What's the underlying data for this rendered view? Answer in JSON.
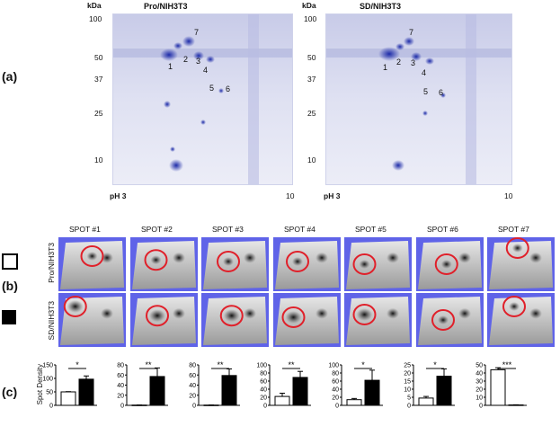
{
  "panel_a": {
    "label": "(a)",
    "unit": "kDa",
    "gels": [
      {
        "title": "Pro/NIH3T3",
        "ph_label": "pH 3",
        "ph_end": "10"
      },
      {
        "title": "SD/NIH3T3",
        "ph_label": "pH 3",
        "ph_end": "10"
      }
    ],
    "mw_ticks": [
      "100",
      "50",
      "37",
      "25",
      "10"
    ],
    "spots": [
      "1",
      "2",
      "3",
      "4",
      "5",
      "6",
      "7"
    ]
  },
  "panel_b": {
    "label": "(b)",
    "spot_titles": [
      "SPOT #1",
      "SPOT #2",
      "SPOT #3",
      "SPOT #4",
      "SPOT #5",
      "SPOT #6",
      "SPOT #7"
    ],
    "row_labels": [
      "Pro/NIH3T3",
      "SD/NIH3T3"
    ],
    "colors": {
      "background": "#5f63e8",
      "circle": "#e0202a"
    }
  },
  "panel_c": {
    "label": "(c)",
    "ylabel": "Spot Density",
    "colors": {
      "open": "#ffffff",
      "filled": "#000000"
    }
  },
  "chart_data": [
    {
      "type": "bar",
      "categories": [
        "Pro/NIH3T3",
        "SD/NIH3T3"
      ],
      "values": [
        50,
        97
      ],
      "errors": [
        1,
        12
      ],
      "ylim": [
        0,
        150
      ],
      "yticks": [
        "0",
        "50",
        "100",
        "150"
      ],
      "significance": "*",
      "ylabel": "Spot Density"
    },
    {
      "type": "bar",
      "categories": [
        "Pro/NIH3T3",
        "SD/NIH3T3"
      ],
      "values": [
        0.5,
        57
      ],
      "errors": [
        0.2,
        17
      ],
      "ylim": [
        0,
        80
      ],
      "yticks": [
        "0",
        "20",
        "40",
        "60",
        "80"
      ],
      "significance": "**"
    },
    {
      "type": "bar",
      "categories": [
        "Pro/NIH3T3",
        "SD/NIH3T3"
      ],
      "values": [
        0.5,
        59
      ],
      "errors": [
        0.2,
        13
      ],
      "ylim": [
        0,
        80
      ],
      "yticks": [
        "0",
        "20",
        "40",
        "60",
        "80"
      ],
      "significance": "**"
    },
    {
      "type": "bar",
      "categories": [
        "Pro/NIH3T3",
        "SD/NIH3T3"
      ],
      "values": [
        22,
        69
      ],
      "errors": [
        8,
        15
      ],
      "ylim": [
        0,
        100
      ],
      "yticks": [
        "0",
        "20",
        "40",
        "60",
        "80",
        "100"
      ],
      "significance": "**"
    },
    {
      "type": "bar",
      "categories": [
        "Pro/NIH3T3",
        "SD/NIH3T3"
      ],
      "values": [
        14,
        62
      ],
      "errors": [
        3,
        25
      ],
      "ylim": [
        0,
        100
      ],
      "yticks": [
        "0",
        "20",
        "40",
        "60",
        "80",
        "100"
      ],
      "significance": "*"
    },
    {
      "type": "bar",
      "categories": [
        "Pro/NIH3T3",
        "SD/NIH3T3"
      ],
      "values": [
        4.5,
        18
      ],
      "errors": [
        1,
        4.5
      ],
      "ylim": [
        0,
        25
      ],
      "yticks": [
        "0",
        "5",
        "10",
        "15",
        "20",
        "25"
      ],
      "significance": "*"
    },
    {
      "type": "bar",
      "categories": [
        "Pro/NIH3T3",
        "SD/NIH3T3"
      ],
      "values": [
        44,
        0.5
      ],
      "errors": [
        2.5,
        0.2
      ],
      "ylim": [
        0,
        50
      ],
      "yticks": [
        "0",
        "10",
        "20",
        "30",
        "40",
        "50"
      ],
      "significance": "***"
    }
  ]
}
